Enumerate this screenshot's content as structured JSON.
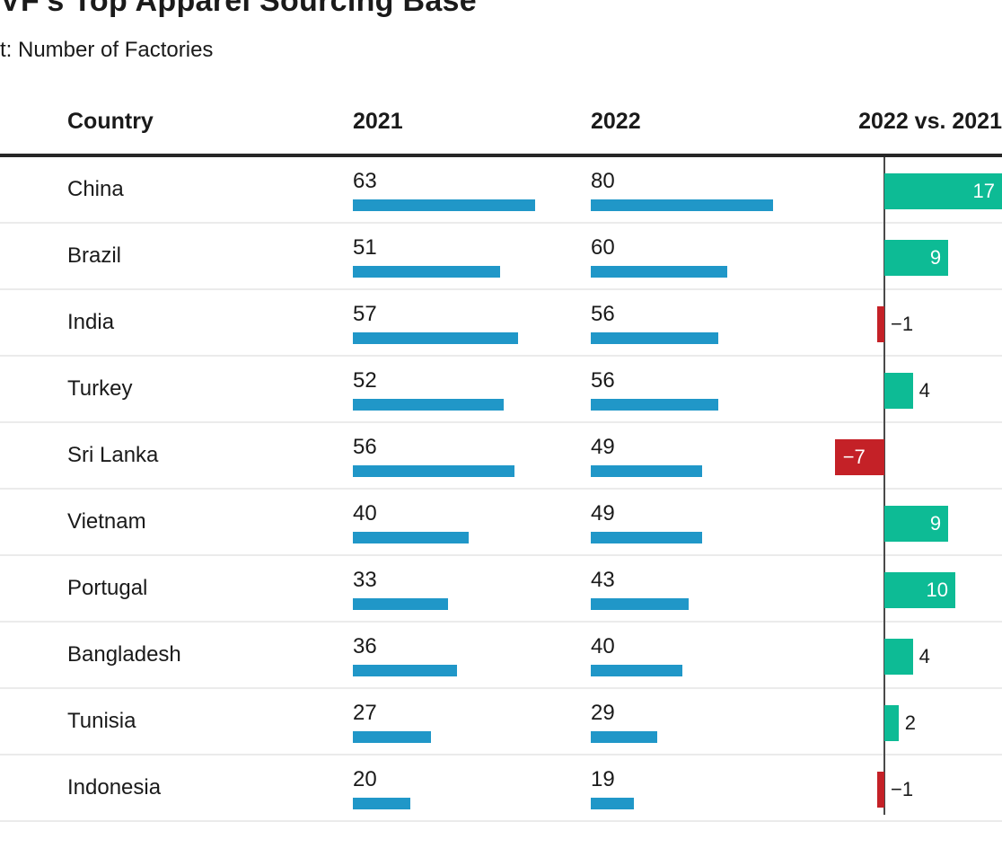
{
  "header": {
    "title": "VF's Top Apparel Sourcing Base",
    "subtitle": "t: Number of Factories"
  },
  "chart_data": {
    "type": "bar",
    "title": "VF's Top Apparel Sourcing Base",
    "subtitle_unit": "t: Number of Factories",
    "columns": [
      "Country",
      "2021",
      "2022",
      "2022 vs. 2021"
    ],
    "categories": [
      "China",
      "Brazil",
      "India",
      "Turkey",
      "Sri Lanka",
      "Vietnam",
      "Portugal",
      "Bangladesh",
      "Tunisia",
      "Indonesia"
    ],
    "series": [
      {
        "name": "2021",
        "values": [
          63,
          51,
          57,
          52,
          56,
          40,
          33,
          36,
          27,
          20
        ]
      },
      {
        "name": "2022",
        "values": [
          80,
          60,
          56,
          56,
          49,
          49,
          43,
          40,
          29,
          19
        ]
      },
      {
        "name": "2022 vs. 2021",
        "values": [
          17,
          9,
          -1,
          4,
          -7,
          9,
          10,
          4,
          2,
          -1
        ]
      }
    ],
    "column_max": {
      "y2021": 63,
      "y2022": 80
    },
    "layout": {
      "grid": false,
      "legend": false,
      "bars_horizontal": true,
      "diff_axis": true
    },
    "colors": {
      "bar_blue": "#2097C8",
      "diff_positive": "#0DBB95",
      "diff_negative": "#C42127",
      "axis_line": "#4A4A4A",
      "header_rule": "#262626",
      "row_separator": "#EBEBEB",
      "text": "#1A1A1A",
      "label_on_bar": "#FFFFFF"
    }
  }
}
